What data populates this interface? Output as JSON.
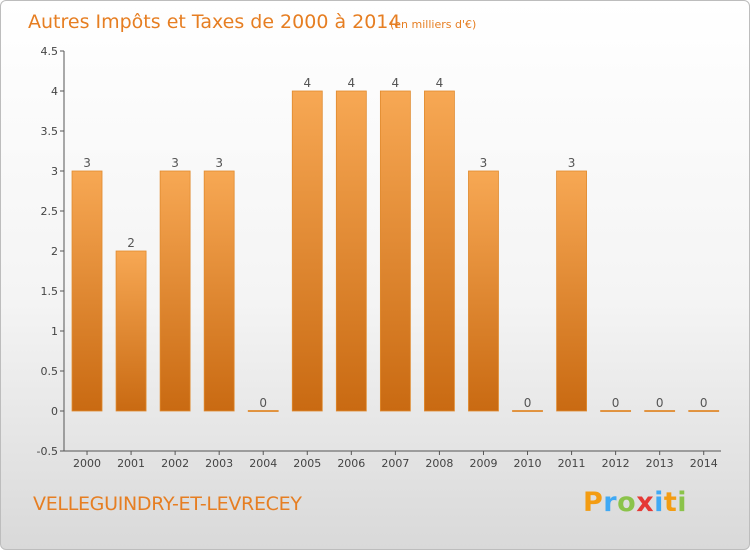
{
  "title": "Autres Impôts et Taxes de 2000 à 2014",
  "subtitle": "(en milliers d'€)",
  "commune": "VELLEGUINDRY-ET-LEVRECEY",
  "logo": {
    "text": "Proxiti",
    "letter_colors": [
      "#f39c12",
      "#3fa9f5",
      "#8bc34a",
      "#e53935",
      "#3fa9f5",
      "#f39c12",
      "#8bc34a"
    ]
  },
  "colors": {
    "bar_top": "#f7a854",
    "bar_bottom": "#c96a12",
    "title": "#e67e22",
    "axis": "#555555"
  },
  "chart_data": {
    "type": "bar",
    "categories": [
      "2000",
      "2001",
      "2002",
      "2003",
      "2004",
      "2005",
      "2006",
      "2007",
      "2008",
      "2009",
      "2010",
      "2011",
      "2012",
      "2013",
      "2014"
    ],
    "values": [
      3,
      2,
      3,
      3,
      0,
      4,
      4,
      4,
      4,
      3,
      0,
      3,
      0,
      0,
      0
    ],
    "data_labels": [
      "3",
      "2",
      "3",
      "3",
      "0",
      "4",
      "4",
      "4",
      "4",
      "3",
      "0",
      "3",
      "0",
      "0",
      "0"
    ],
    "yticks": [
      "-0.5",
      "0",
      "0.5",
      "1",
      "1.5",
      "2",
      "2.5",
      "3",
      "3.5",
      "4",
      "4.5"
    ],
    "ytick_values": [
      -0.5,
      0,
      0.5,
      1,
      1.5,
      2,
      2.5,
      3,
      3.5,
      4,
      4.5
    ],
    "ylim": [
      -0.5,
      4.5
    ],
    "grid": false,
    "legend": "none"
  }
}
